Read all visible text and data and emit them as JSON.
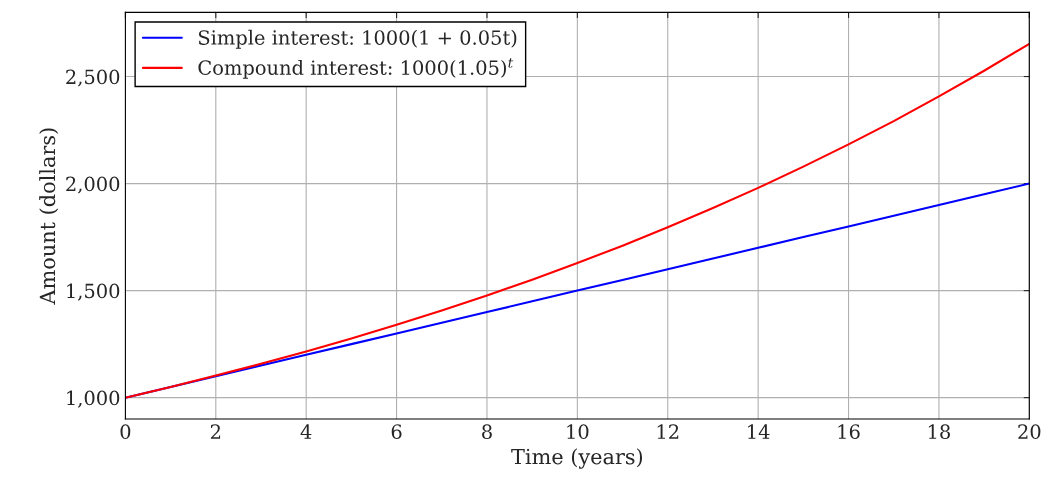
{
  "chart_data": {
    "type": "line",
    "xlabel": "Time (years)",
    "ylabel": "Amount (dollars)",
    "x": [
      0,
      1,
      2,
      3,
      4,
      5,
      6,
      7,
      8,
      9,
      10,
      11,
      12,
      13,
      14,
      15,
      16,
      17,
      18,
      19,
      20
    ],
    "series": [
      {
        "name": "Simple interest: 1000(1 + 0.05t)",
        "color": "#0000ff",
        "values": [
          1000,
          1050,
          1100,
          1150,
          1200,
          1250,
          1300,
          1350,
          1400,
          1450,
          1500,
          1550,
          1600,
          1650,
          1700,
          1750,
          1800,
          1850,
          1900,
          1950,
          2000
        ]
      },
      {
        "name": "Compound interest: 1000(1.05)$^{t}$",
        "color": "#ff0000",
        "values": [
          1000,
          1050,
          1103,
          1158,
          1216,
          1276,
          1340,
          1407,
          1477,
          1551,
          1629,
          1710,
          1796,
          1886,
          1980,
          2079,
          2183,
          2292,
          2407,
          2527,
          2653
        ]
      }
    ],
    "xlim": [
      0,
      20
    ],
    "xticks": [
      0,
      2,
      4,
      6,
      8,
      10,
      12,
      14,
      16,
      18,
      20
    ],
    "ylim": [
      900,
      2800
    ],
    "yticks": [
      {
        "value": 1000,
        "label": "1,000"
      },
      {
        "value": 1500,
        "label": "1,500"
      },
      {
        "value": 2000,
        "label": "2,000"
      },
      {
        "value": 2500,
        "label": "2,500"
      }
    ],
    "grid": true,
    "legend": "top left",
    "marker": "none",
    "line_style": "solid"
  }
}
